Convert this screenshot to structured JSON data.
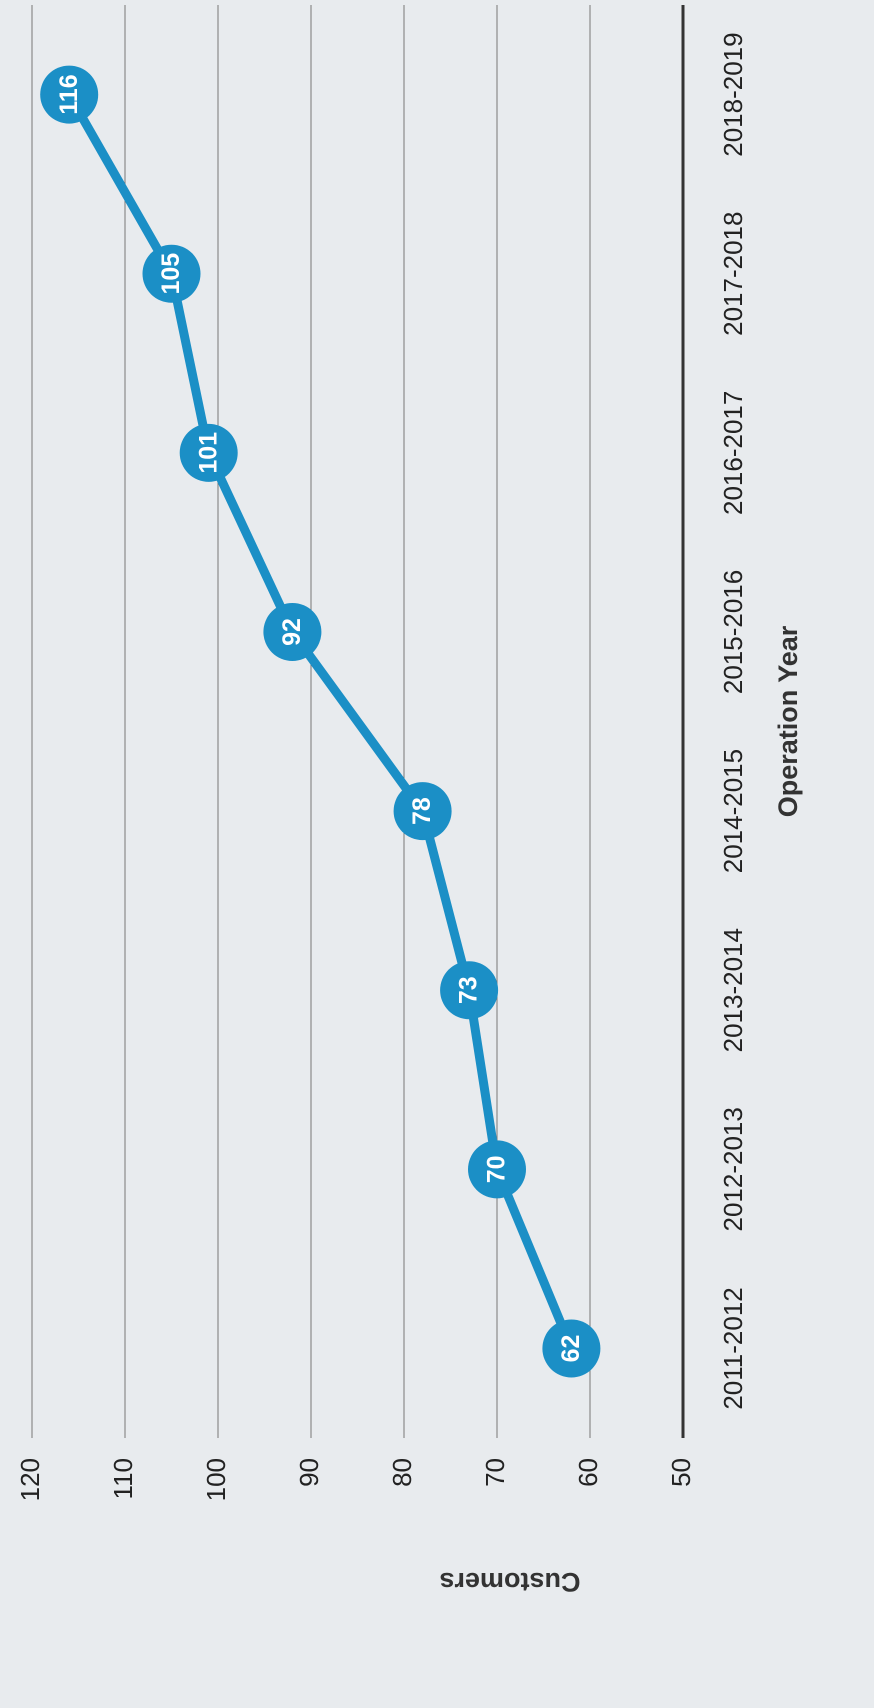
{
  "chart_data": {
    "type": "line",
    "categories": [
      "2011-2012",
      "2012-2013",
      "2013-2014",
      "2014-2015",
      "2015-2016",
      "2016-2017",
      "2017-2018",
      "2018-2019"
    ],
    "series": [
      {
        "name": "Customers",
        "color": "#1b8fc6",
        "values": [
          62,
          70,
          73,
          78,
          92,
          101,
          105,
          116
        ]
      }
    ],
    "x_label": "Operation Year",
    "y_label": "Customers",
    "ylim": [
      50,
      120
    ],
    "yticks": [
      50,
      60,
      70,
      80,
      90,
      100,
      110,
      120
    ],
    "grid": true
  }
}
